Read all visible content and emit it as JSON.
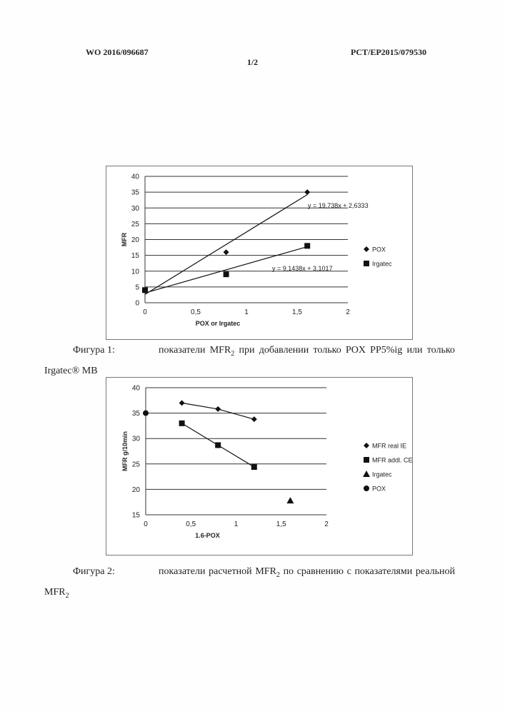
{
  "header": {
    "left": "WO 2016/096687",
    "right": "PCT/EP2015/079530",
    "page": "1/2"
  },
  "figures": [
    {
      "caption_label": "Фигура 1:",
      "caption_words": [
        "показатели",
        "MFR",
        "при",
        "добавлении",
        "только",
        "POX",
        "PP5%ig",
        "или",
        "только"
      ],
      "caption_line2": "Irgatec® MB"
    },
    {
      "caption_label": "Фигура 2:",
      "caption_words": [
        "показатели",
        "расчетной",
        "MFR",
        "по",
        "сравнению",
        "с",
        "показателями",
        "реальной"
      ],
      "caption_line2": "MFR"
    }
  ],
  "chart_data": [
    {
      "type": "scatter",
      "xlabel": "POX or Irgatec",
      "ylabel": "MFR",
      "xlim": [
        0,
        2
      ],
      "ylim": [
        0,
        40
      ],
      "xticks": [
        "0",
        "0,5",
        "1",
        "1,5",
        "2"
      ],
      "yticks": [
        "0",
        "5",
        "10",
        "15",
        "20",
        "25",
        "30",
        "35",
        "40"
      ],
      "xtick_values": [
        0,
        0.5,
        1,
        1.5,
        2
      ],
      "ytick_values": [
        0,
        5,
        10,
        15,
        20,
        25,
        30,
        35,
        40
      ],
      "grid": "horizontal",
      "legend": "right",
      "series": [
        {
          "name": "POX",
          "marker": "diamond",
          "x": [
            0,
            0.8,
            1.6
          ],
          "y": [
            4,
            16,
            35
          ],
          "trendline": [
            2.6333,
            19.738
          ],
          "equation": "y = 19,738x + 2,6333"
        },
        {
          "name": "Irgatec",
          "marker": "square",
          "x": [
            0,
            0.8,
            1.6
          ],
          "y": [
            4,
            9,
            18
          ],
          "trendline": [
            3.1017,
            9.1438
          ],
          "equation": "y = 9,1438x + 3,1017"
        }
      ]
    },
    {
      "type": "scatter",
      "xlabel": "1.6-POX",
      "ylabel": "MFR g/10min",
      "xlim": [
        0,
        2
      ],
      "ylim": [
        15,
        40
      ],
      "xticks": [
        "0",
        "0,5",
        "1",
        "1,5",
        "2"
      ],
      "yticks": [
        "15",
        "20",
        "25",
        "30",
        "35",
        "40"
      ],
      "xtick_values": [
        0,
        0.5,
        1,
        1.5,
        2
      ],
      "ytick_values": [
        15,
        20,
        25,
        30,
        35,
        40
      ],
      "grid": "horizontal",
      "legend": "right",
      "series": [
        {
          "name": "MFR real IE",
          "marker": "diamond",
          "connected": true,
          "x": [
            0.4,
            0.8,
            1.2
          ],
          "y": [
            37,
            35.8,
            33.8
          ]
        },
        {
          "name": "MFR addl. CE",
          "marker": "square",
          "connected": true,
          "x": [
            0.4,
            0.8,
            1.2
          ],
          "y": [
            33,
            28.7,
            24.4
          ]
        },
        {
          "name": "Irgatec",
          "marker": "triangle",
          "x": [
            1.6
          ],
          "y": [
            17.8
          ]
        },
        {
          "name": "POX",
          "marker": "circle",
          "x": [
            0
          ],
          "y": [
            35
          ]
        }
      ]
    }
  ]
}
